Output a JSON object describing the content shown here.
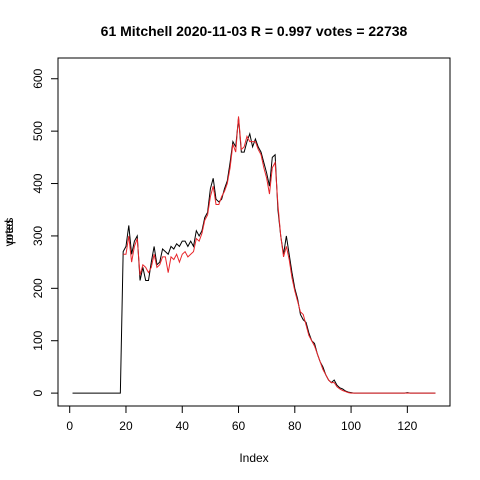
{
  "chart_data": {
    "type": "line",
    "title": "61 Mitchell 2020-11-03 R = 0.997 votes = 22738",
    "x_label": "Index",
    "y_labels": [
      "votes",
      "pred"
    ],
    "x": [
      1,
      2,
      3,
      4,
      5,
      6,
      7,
      8,
      9,
      10,
      11,
      12,
      13,
      14,
      15,
      16,
      17,
      18,
      19,
      20,
      21,
      22,
      23,
      24,
      25,
      26,
      27,
      28,
      29,
      30,
      31,
      32,
      33,
      34,
      35,
      36,
      37,
      38,
      39,
      40,
      41,
      42,
      43,
      44,
      45,
      46,
      47,
      48,
      49,
      50,
      51,
      52,
      53,
      54,
      55,
      56,
      57,
      58,
      59,
      60,
      61,
      62,
      63,
      64,
      65,
      66,
      67,
      68,
      69,
      70,
      71,
      72,
      73,
      74,
      75,
      76,
      77,
      78,
      79,
      80,
      81,
      82,
      83,
      84,
      85,
      86,
      87,
      88,
      89,
      90,
      91,
      92,
      93,
      94,
      95,
      96,
      97,
      98,
      99,
      100,
      101,
      102,
      103,
      104,
      105,
      106,
      107,
      108,
      109,
      110,
      111,
      112,
      113,
      114,
      115,
      116,
      117,
      118,
      119,
      120,
      121,
      122,
      123,
      124,
      125,
      126,
      127,
      128,
      129,
      130
    ],
    "series": [
      {
        "name": "votes",
        "color": "#000000",
        "values": [
          0,
          0,
          0,
          0,
          0,
          0,
          0,
          0,
          0,
          0,
          0,
          0,
          0,
          0,
          0,
          0,
          0,
          0,
          270,
          280,
          320,
          265,
          290,
          300,
          215,
          240,
          215,
          215,
          250,
          280,
          245,
          250,
          275,
          270,
          265,
          280,
          275,
          285,
          280,
          290,
          290,
          280,
          290,
          280,
          310,
          300,
          310,
          335,
          345,
          390,
          410,
          370,
          365,
          370,
          390,
          405,
          440,
          480,
          470,
          525,
          460,
          460,
          480,
          495,
          470,
          485,
          470,
          460,
          440,
          420,
          395,
          450,
          455,
          350,
          300,
          265,
          300,
          265,
          230,
          200,
          180,
          150,
          140,
          135,
          115,
          100,
          95,
          75,
          60,
          50,
          35,
          25,
          20,
          25,
          15,
          10,
          8,
          4,
          2,
          1,
          0,
          0,
          0,
          0,
          0,
          0,
          0,
          0,
          0,
          0,
          0,
          0,
          0,
          0,
          0,
          0,
          0,
          0,
          0,
          1,
          0,
          0,
          0,
          0,
          0,
          0,
          0,
          0,
          0,
          0
        ]
      },
      {
        "name": "pred",
        "color": "#e8262b",
        "values": [
          null,
          null,
          null,
          null,
          null,
          null,
          null,
          null,
          null,
          null,
          null,
          null,
          null,
          null,
          null,
          null,
          null,
          null,
          265,
          265,
          300,
          250,
          280,
          295,
          225,
          245,
          240,
          230,
          240,
          265,
          240,
          245,
          260,
          260,
          230,
          260,
          255,
          265,
          250,
          265,
          270,
          260,
          265,
          270,
          295,
          290,
          305,
          330,
          340,
          375,
          395,
          360,
          360,
          375,
          385,
          400,
          430,
          475,
          460,
          528,
          465,
          470,
          490,
          480,
          480,
          480,
          465,
          455,
          430,
          410,
          380,
          430,
          440,
          360,
          300,
          260,
          280,
          255,
          220,
          195,
          175,
          155,
          150,
          130,
          110,
          100,
          90,
          75,
          60,
          45,
          35,
          25,
          20,
          20,
          12,
          8,
          5,
          3,
          1,
          0,
          0,
          0,
          0,
          0,
          0,
          0,
          0,
          0,
          0,
          0,
          0,
          0,
          0,
          0,
          0,
          0,
          0,
          0,
          0,
          0,
          0,
          0,
          0,
          0,
          0,
          0,
          0,
          0,
          0,
          0
        ]
      }
    ],
    "xlim": [
      -4.16,
      135.16
    ],
    "xticks": [
      0,
      20,
      40,
      60,
      80,
      100,
      120
    ],
    "ylim": [
      -24.6,
      639.6
    ],
    "yticks": [
      0,
      100,
      200,
      300,
      400,
      500,
      600
    ]
  }
}
